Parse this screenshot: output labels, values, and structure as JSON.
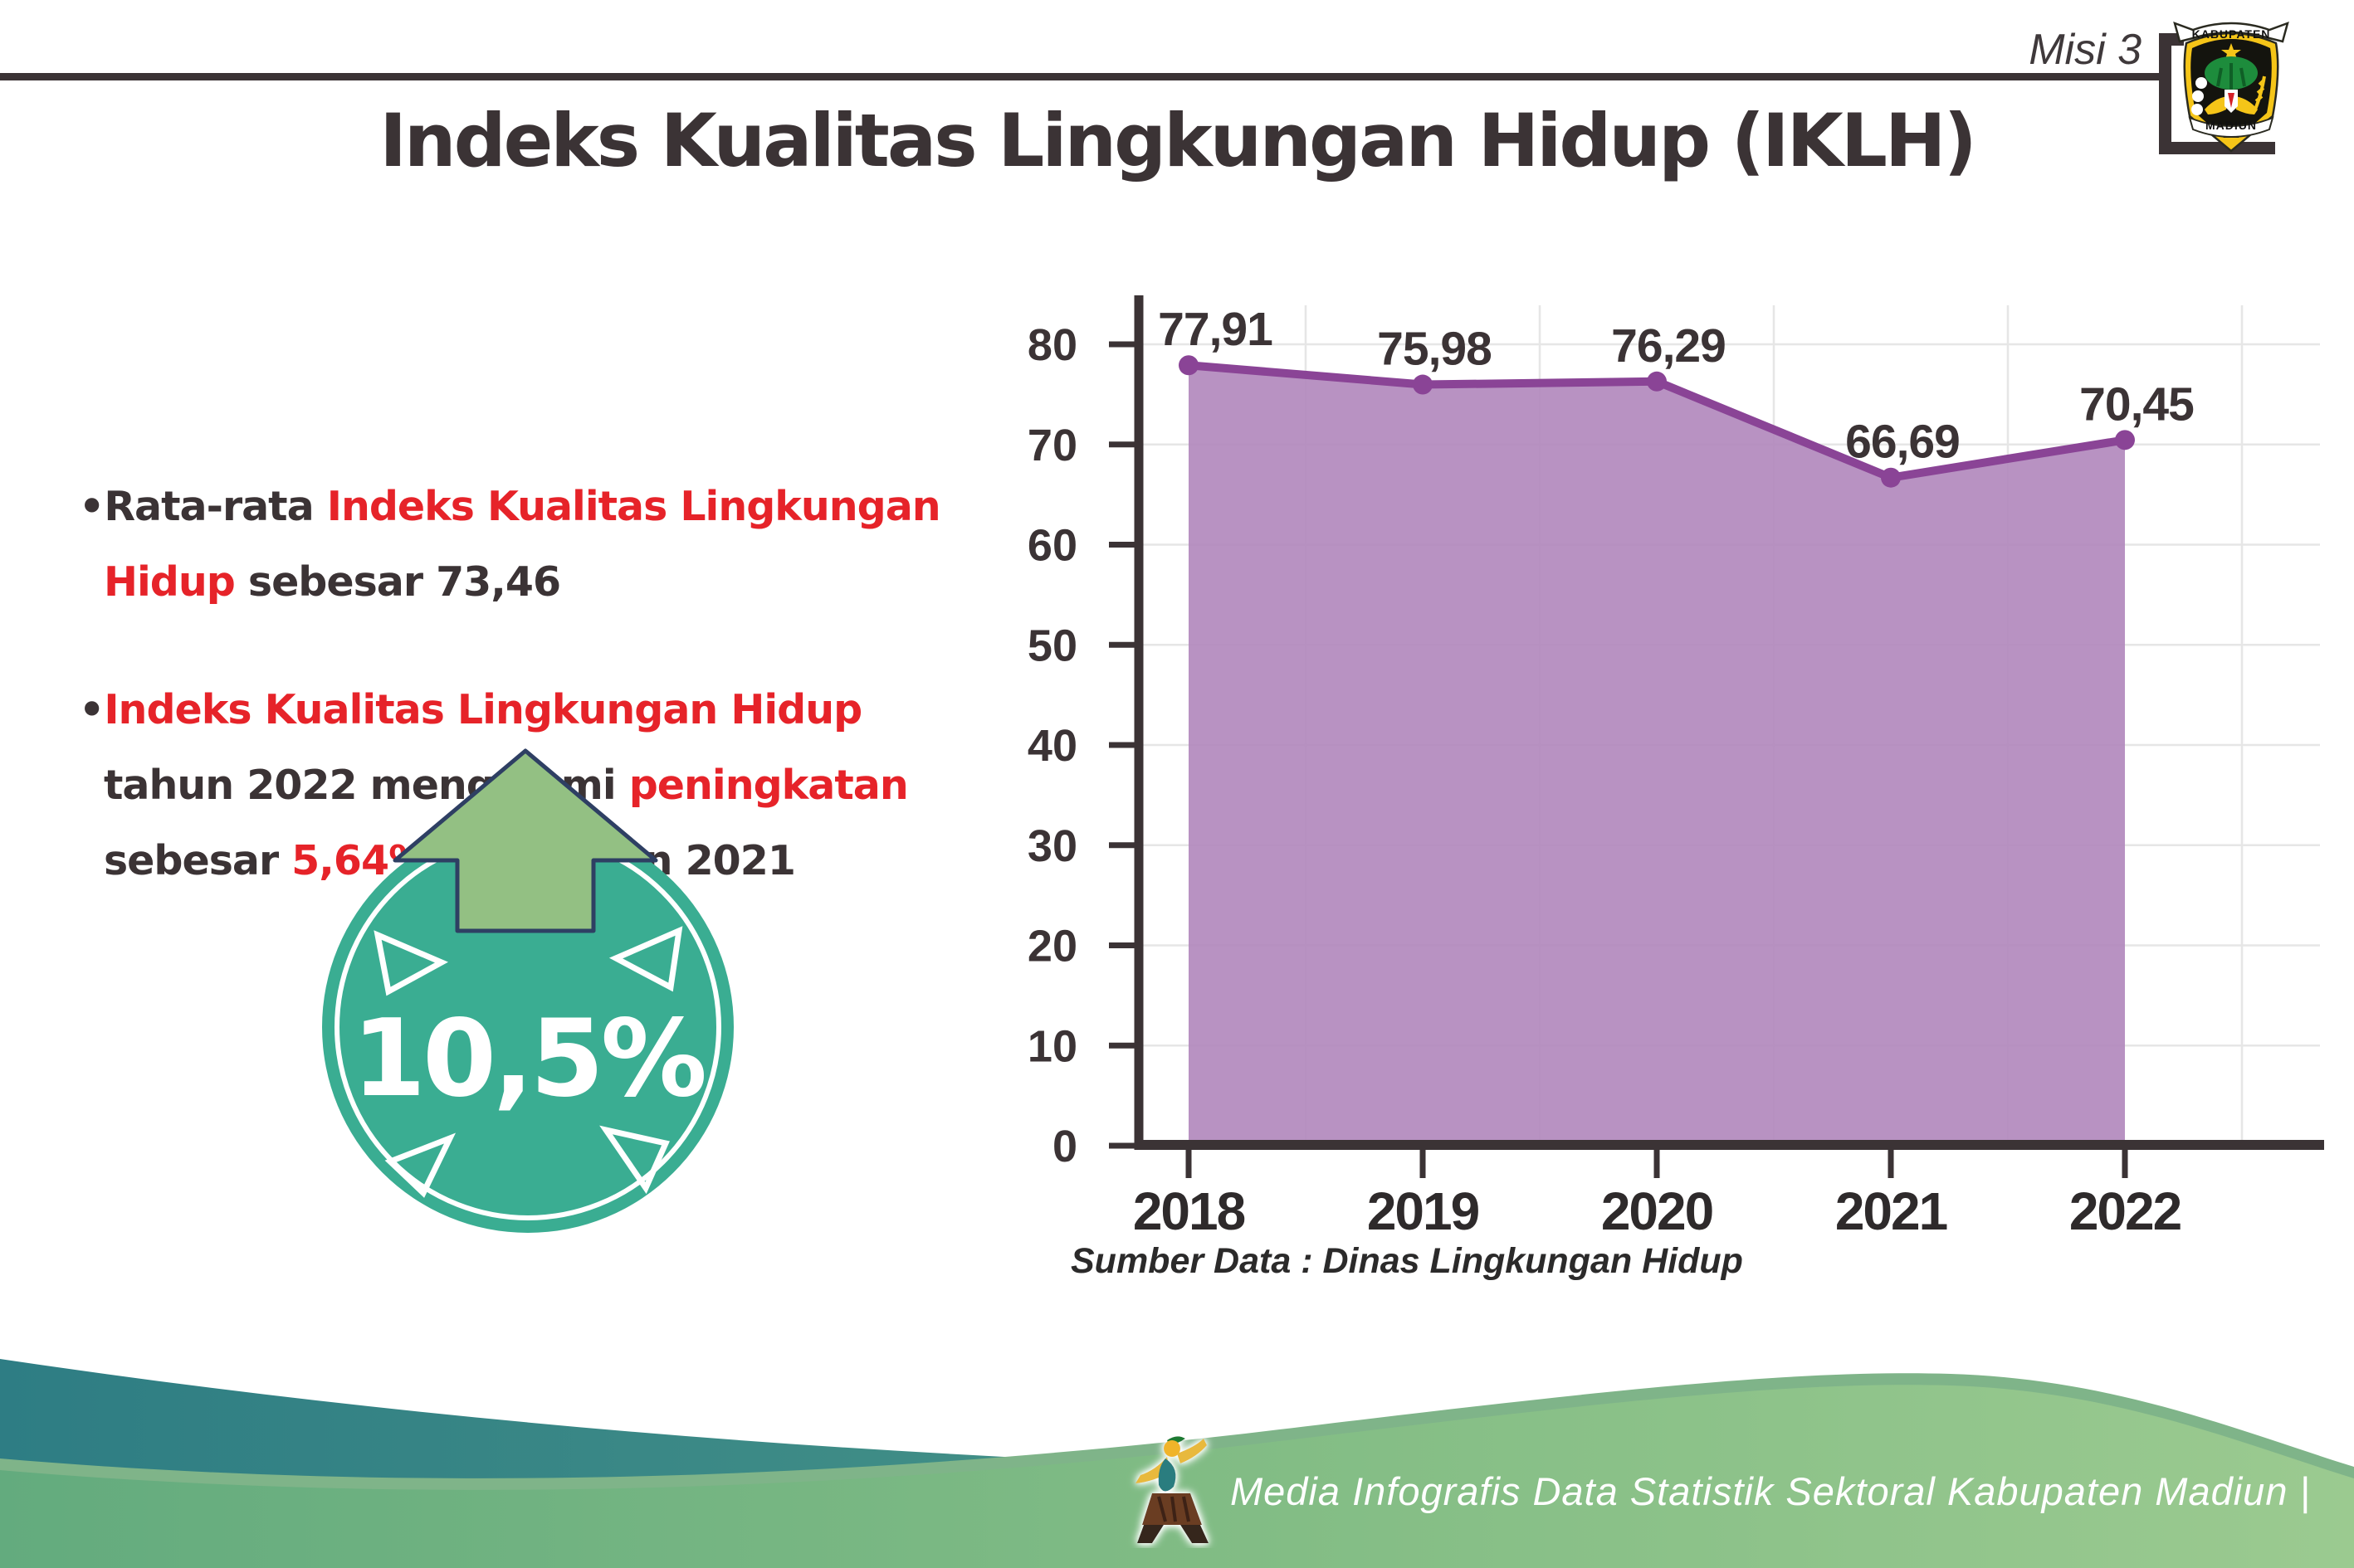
{
  "header": {
    "misi_label": "Misi 3",
    "title": "Indeks Kualitas Lingkungan Hidup (IKLH)"
  },
  "logo": {
    "top_text": "KABUPATEN",
    "bottom_text": "MADIUN"
  },
  "bullets": {
    "b1": [
      {
        "t": "Rata-rata ",
        "c": "seg-dark"
      },
      {
        "t": "Indeks Kualitas Lingkungan Hidup",
        "c": "seg-red"
      },
      {
        "t": " sebesar 73,46",
        "c": "seg-dark"
      }
    ],
    "b2": [
      {
        "t": "Indeks Kualitas Lingkungan Hidup",
        "c": "seg-red"
      },
      {
        "t": " tahun 2022 mengalami ",
        "c": "seg-dark"
      },
      {
        "t": "peningkatan",
        "c": "seg-red"
      },
      {
        "t": " sebesar ",
        "c": "seg-dark"
      },
      {
        "t": "5,64%",
        "c": "seg-red"
      },
      {
        "t": " dari tahun 2021",
        "c": "seg-dark"
      }
    ]
  },
  "badge": {
    "value": "10,5%",
    "color": "#3aad92",
    "arrow_color": "#93c083"
  },
  "chart_data": {
    "type": "area",
    "categories": [
      "2018",
      "2019",
      "2020",
      "2021",
      "2022"
    ],
    "values": [
      77.91,
      75.98,
      76.29,
      66.69,
      70.45
    ],
    "value_labels": [
      "77,91",
      "75,98",
      "76,29",
      "66,69",
      "70,45"
    ],
    "yticks": [
      "0",
      "10",
      "20",
      "30",
      "40",
      "50",
      "60",
      "70",
      "80"
    ],
    "ylim": [
      0,
      80
    ],
    "grid": true,
    "legend": "none",
    "line_color": "#8a4496",
    "fill_color": "#b289bd",
    "source": "Sumber Data : Dinas Lingkungan Hidup"
  },
  "footer": {
    "credit": "Media Infografis Data Statistik Sektoral Kabupaten Madiun |"
  }
}
